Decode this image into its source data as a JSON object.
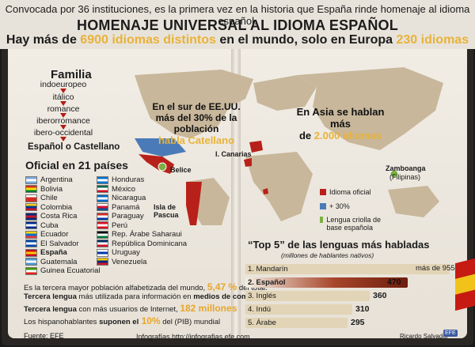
{
  "header": {
    "subtitle": "Convocada por 36 instituciones, es la primera vez en la historia que España rinde homenaje al idioma español.",
    "title": "HOMENAJE UNIVERSAL AL IDIOMA ESPAÑOL",
    "headline_pre": "Hay más de ",
    "headline_hl1": "6900 idiomas distintos",
    "headline_mid": " en el mundo, solo en Europa ",
    "headline_hl2": "230 idiomas"
  },
  "family": {
    "title": "Familia",
    "items": [
      "indoeuropeo",
      "itálico",
      "romance",
      "iberorromance",
      "ibero-occidental"
    ],
    "result": "Español o Castellano"
  },
  "official": {
    "title": "Oficial en 21 países",
    "left": [
      "Argentina",
      "Bolivia",
      "Chile",
      "Colombia",
      "Costa Rica",
      "Cuba",
      "Ecuador",
      "El Salvador",
      "España",
      "Guatemala",
      "Guinea Ecuatorial"
    ],
    "right": [
      "Honduras",
      "México",
      "Nicaragua",
      "Panamá",
      "Paraguay",
      "Perú",
      "Rep. Árabe Saharaui",
      "República Dominicana",
      "Uruguay",
      "Venezuela"
    ]
  },
  "map": {
    "usa_line1": "En el sur de EE.UU.",
    "usa_line2": "más del 30% de la población",
    "usa_hl": "habla Catellano",
    "asia_line1": "En Asia se hablan más",
    "asia_pre": "de ",
    "asia_hl": "2.000 idiomas",
    "canarias": "I. Canarias",
    "belice": "Belice",
    "pascua": "Isla de Pascua",
    "zamboanga": "Zamboanga",
    "filipinas": "(Filipinas)",
    "legend": [
      "Idioma oficial",
      "+ 30%",
      "Lengua criolla de base española"
    ],
    "colors": {
      "oficial": "#b8211a",
      "over30": "#4a7bb8",
      "criolla": "#7bb043",
      "land": "#c8b79b",
      "sea": "#e9e4dc"
    }
  },
  "stats": {
    "l1_pre": "Es la tercera mayor población alfabetizada del mundo, ",
    "l1_hl": "5,47 %",
    "l1_post": " del total.",
    "l2_b": "Tercera lengua",
    "l2_m": " más utilizada para información en ",
    "l2_b2": "medios de comunicación.",
    "l3_b": "Tercera lengua",
    "l3_m": " con más usuarios de Internet, ",
    "l3_hl": "182 millones",
    "l4_pre": "Los hispanohablantes ",
    "l4_b": "suponen el",
    "l4_hl": " 10%",
    "l4_post": " del (PIB) mundial"
  },
  "top5": {
    "title": "“Top 5” de las lenguas más habladas",
    "subtitle": "(millones de hablantes nativos)"
  },
  "chart_data": {
    "type": "bar",
    "title": "“Top 5” de las lenguas más habladas",
    "subtitle": "(millones de hablantes nativos)",
    "categories": [
      "1. Mandarín",
      "2. Español",
      "3. Inglés",
      "4. Indú",
      "5. Árabe"
    ],
    "values": [
      955,
      470,
      360,
      310,
      295
    ],
    "value_labels": [
      "más de 955",
      "470",
      "360",
      "310",
      "295"
    ],
    "colors": [
      "#e2d4b6",
      "#8b2a14",
      "#e2d4b6",
      "#e2d4b6",
      "#e2d4b6"
    ],
    "label_colors": [
      "#1a1a1a",
      "#ffffff",
      "#1a1a1a",
      "#1a1a1a",
      "#1a1a1a"
    ]
  },
  "footer": {
    "source": "Fuente: EFE",
    "web": "Infografías http://infografias.efe.com",
    "author": "Ricardo Salvador",
    "badge": "EFE"
  }
}
